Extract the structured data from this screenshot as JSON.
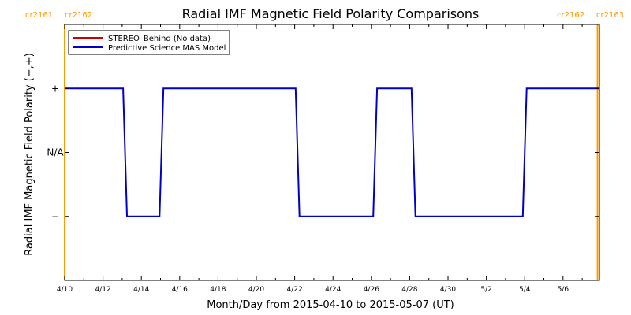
{
  "chart_data": {
    "type": "line",
    "title": "Radial IMF Magnetic Field Polarity Comparisons",
    "xlabel": "Month/Day from 2015-04-10 to 2015-05-07 (UT)",
    "ylabel": "Radial IMF Magnetic Field Polarity (−,+)",
    "x_ticks": [
      "4/10",
      "4/12",
      "4/14",
      "4/16",
      "4/18",
      "4/20",
      "4/22",
      "4/24",
      "4/26",
      "4/28",
      "4/30",
      "5/2",
      "5/4",
      "5/6"
    ],
    "x_tick_days": [
      0,
      2,
      4,
      6,
      8,
      10,
      12,
      14,
      16,
      18,
      20,
      22,
      24,
      26
    ],
    "xlim_days": [
      0,
      27.9
    ],
    "y_ticks": [
      {
        "value": 1,
        "label": "+"
      },
      {
        "value": 0,
        "label": "N/A"
      },
      {
        "value": -1,
        "label": "−"
      }
    ],
    "ylim": [
      -2,
      2
    ],
    "carrington_markers": [
      {
        "day": 0,
        "left_label": "cr2161",
        "right_label": "cr2162"
      },
      {
        "day": 27.8,
        "left_label": "cr2162",
        "right_label": "cr2163"
      }
    ],
    "series": [
      {
        "name": "STEREO–Behind (No data)",
        "color": "#cc0000",
        "x_days": [],
        "y": []
      },
      {
        "name": "Predictive Science MAS Model",
        "color": "#0000cc",
        "x_days": [
          0,
          3.05,
          3.25,
          4.95,
          5.15,
          12.05,
          12.25,
          16.1,
          16.3,
          18.1,
          18.3,
          23.9,
          24.1,
          27.9
        ],
        "y": [
          1,
          1,
          -1,
          -1,
          1,
          1,
          -1,
          -1,
          1,
          1,
          -1,
          -1,
          1,
          1
        ]
      }
    ],
    "legend_position": "top-left",
    "grid": false
  }
}
